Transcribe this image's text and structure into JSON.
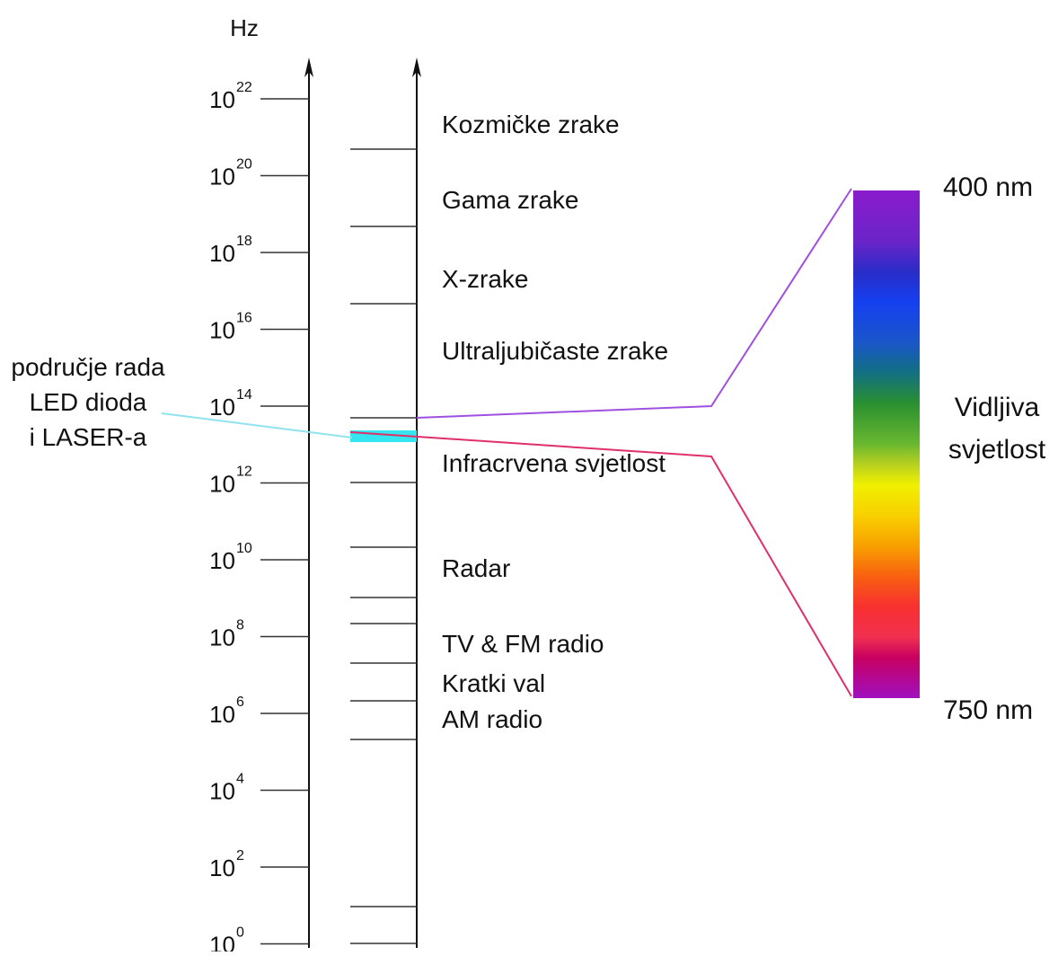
{
  "axis_unit": "Hz",
  "frequency_ticks": [
    {
      "base": "10",
      "exponent": "22"
    },
    {
      "base": "10",
      "exponent": "20"
    },
    {
      "base": "10",
      "exponent": "18"
    },
    {
      "base": "10",
      "exponent": "16"
    },
    {
      "base": "10",
      "exponent": "14"
    },
    {
      "base": "10",
      "exponent": "12"
    },
    {
      "base": "10",
      "exponent": "10"
    },
    {
      "base": "10",
      "exponent": "8"
    },
    {
      "base": "10",
      "exponent": "6"
    },
    {
      "base": "10",
      "exponent": "4"
    },
    {
      "base": "10",
      "exponent": "2"
    },
    {
      "base": "10",
      "exponent": "0"
    }
  ],
  "bands": [
    "Kozmičke zrake",
    "Gama zrake",
    "X-zrake",
    "Ultraljubičaste zrake",
    "Infracrvena svjetlost",
    "Radar",
    "TV & FM radio",
    "Kratki val",
    "AM radio"
  ],
  "led_laser_label": [
    "područje rada",
    "LED dioda",
    "i LASER-a"
  ],
  "visible_light": {
    "label": [
      "Vidljiva",
      "svjetlost"
    ],
    "top": "400 nm",
    "bottom": "750 nm"
  }
}
